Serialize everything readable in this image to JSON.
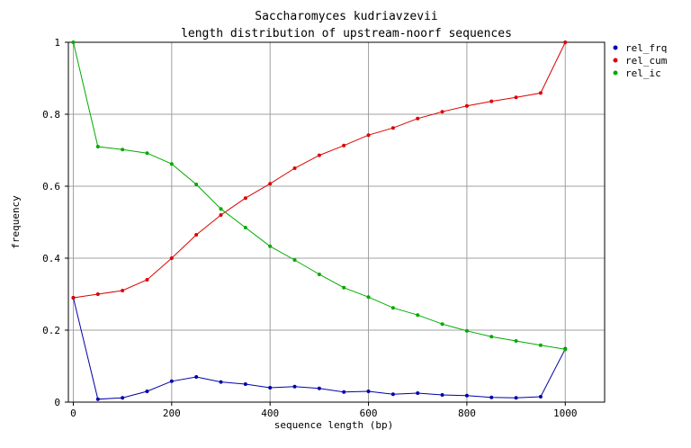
{
  "chart_data": {
    "type": "line",
    "title": [
      "Saccharomyces kudriavzevii",
      "length distribution of upstream-noorf sequences"
    ],
    "xlabel": "sequence length (bp)",
    "ylabel": "frequency",
    "xlim": [
      -10,
      1080
    ],
    "ylim": [
      0,
      1
    ],
    "xticks": [
      0,
      200,
      400,
      600,
      800,
      1000
    ],
    "xtick_labels": [
      "0",
      "200",
      "400",
      "600",
      "800",
      "1000"
    ],
    "yticks": [
      0,
      0.2,
      0.4,
      0.6,
      0.8,
      1
    ],
    "ytick_labels": [
      "0",
      "0.2",
      "0.4",
      "0.6",
      "0.8",
      "1"
    ],
    "grid": true,
    "legend_position": "top-right",
    "x": [
      0,
      50,
      100,
      150,
      200,
      250,
      300,
      350,
      400,
      450,
      500,
      550,
      600,
      650,
      700,
      750,
      800,
      850,
      900,
      950,
      1000
    ],
    "series": [
      {
        "name": "rel_frq",
        "color": "#0000aa",
        "values": [
          0.29,
          0.008,
          0.012,
          0.03,
          0.058,
          0.07,
          0.056,
          0.05,
          0.04,
          0.043,
          0.038,
          0.028,
          0.03,
          0.022,
          0.025,
          0.02,
          0.018,
          0.013,
          0.012,
          0.015,
          0.148
        ]
      },
      {
        "name": "rel_cum",
        "color": "#dd0000",
        "values": [
          0.29,
          0.3,
          0.31,
          0.34,
          0.4,
          0.465,
          0.52,
          0.567,
          0.607,
          0.65,
          0.686,
          0.713,
          0.742,
          0.762,
          0.788,
          0.807,
          0.823,
          0.836,
          0.847,
          0.859,
          1.0
        ]
      },
      {
        "name": "rel_ic",
        "color": "#00aa00",
        "values": [
          1.0,
          0.71,
          0.702,
          0.692,
          0.662,
          0.605,
          0.537,
          0.485,
          0.433,
          0.395,
          0.355,
          0.318,
          0.292,
          0.262,
          0.242,
          0.217,
          0.198,
          0.182,
          0.17,
          0.158,
          0.147
        ]
      }
    ]
  }
}
